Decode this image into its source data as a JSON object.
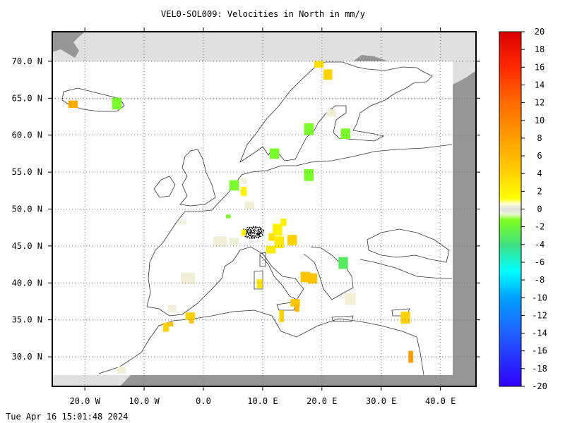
{
  "title": "VEL0-SOL009: Velocities in North in mm/y",
  "footer_timestamp": "Tue Apr 16 15:01:48 2024",
  "map_extent": {
    "lon_min": -25.5,
    "lon_max": 46.0,
    "lat_min": 26.0,
    "lat_max": 74.0
  },
  "lat_axis": {
    "ticks": [
      70,
      65,
      60,
      55,
      50,
      45,
      40,
      35,
      30
    ],
    "labels": [
      "70.0 N",
      "65.0 N",
      "60.0 N",
      "55.0 N",
      "50.0 N",
      "45.0 N",
      "40.0 N",
      "35.0 N",
      "30.0 N"
    ]
  },
  "lon_axis": {
    "ticks": [
      -20,
      -10,
      0,
      10,
      20,
      30,
      40
    ],
    "labels": [
      "20.0 W",
      "10.0 W",
      "0.0",
      "10.0 E",
      "20.0 E",
      "30.0 E",
      "40.0 E"
    ]
  },
  "colorbar": {
    "min": -20,
    "max": 20,
    "tick_values": [
      20,
      18,
      16,
      14,
      12,
      10,
      8,
      6,
      4,
      2,
      0,
      -2,
      -4,
      -6,
      -8,
      -10,
      -12,
      -14,
      -16,
      -18,
      -20
    ],
    "tick_labels": [
      "20",
      "18",
      "16",
      "14",
      "12",
      "10",
      "8",
      "6",
      "4",
      "2",
      "0",
      "-2",
      "-4",
      "-6",
      "-8",
      "-10",
      "-12",
      "-14",
      "-16",
      "-18",
      "-20"
    ],
    "stops": [
      {
        "v": 20,
        "c": "#d90000"
      },
      {
        "v": 16,
        "c": "#ff2a00"
      },
      {
        "v": 12,
        "c": "#ff6a00"
      },
      {
        "v": 8,
        "c": "#ff9e00"
      },
      {
        "v": 4,
        "c": "#ffd200"
      },
      {
        "v": 1.2,
        "c": "#ffff00"
      },
      {
        "v": 0.6,
        "c": "#ffffd0"
      },
      {
        "v": 0,
        "c": "#e0e0e0"
      },
      {
        "v": -0.6,
        "c": "#e8f8d0"
      },
      {
        "v": -1.2,
        "c": "#80ff20"
      },
      {
        "v": -4,
        "c": "#40e080"
      },
      {
        "v": -7,
        "c": "#00ffff"
      },
      {
        "v": -10,
        "c": "#00a0ff"
      },
      {
        "v": -14,
        "c": "#2060ff"
      },
      {
        "v": -20,
        "c": "#3000ff"
      }
    ]
  },
  "chart_data": {
    "type": "heatmap",
    "title": "VEL0-SOL009: Velocities in North in mm/y",
    "value_unit": "mm/y",
    "xrange": [
      -25.5,
      46.0
    ],
    "yrange": [
      26.0,
      74.0
    ],
    "cells": [
      {
        "lon": -22.0,
        "lat": 64.2,
        "w": 1.6,
        "h": 1.0,
        "v": 7
      },
      {
        "lon": -14.6,
        "lat": 64.3,
        "w": 1.6,
        "h": 1.6,
        "v": -1.5
      },
      {
        "lon": 19.5,
        "lat": 69.6,
        "w": 1.6,
        "h": 0.9,
        "v": 3
      },
      {
        "lon": 21.0,
        "lat": 68.2,
        "w": 1.5,
        "h": 1.4,
        "v": 4
      },
      {
        "lon": 21.6,
        "lat": 63.0,
        "w": 1.6,
        "h": 1.0,
        "v": 0.3
      },
      {
        "lon": 17.8,
        "lat": 60.8,
        "w": 1.6,
        "h": 1.6,
        "v": -1.5
      },
      {
        "lon": 24.0,
        "lat": 60.2,
        "w": 1.6,
        "h": 1.4,
        "v": -1.5
      },
      {
        "lon": 12.0,
        "lat": 57.5,
        "w": 1.6,
        "h": 1.4,
        "v": -1.5
      },
      {
        "lon": 17.8,
        "lat": 54.6,
        "w": 1.6,
        "h": 1.6,
        "v": -1.5
      },
      {
        "lon": 5.2,
        "lat": 53.2,
        "w": 1.6,
        "h": 1.4,
        "v": -1.5
      },
      {
        "lon": 6.8,
        "lat": 52.4,
        "w": 1.0,
        "h": 1.2,
        "v": 2
      },
      {
        "lon": 6.8,
        "lat": 53.8,
        "w": 1.0,
        "h": 0.8,
        "v": 0.3
      },
      {
        "lon": 7.8,
        "lat": 50.5,
        "w": 1.6,
        "h": 1.0,
        "v": 0.3
      },
      {
        "lon": 4.2,
        "lat": 49.0,
        "w": 0.8,
        "h": 0.5,
        "v": -1.5
      },
      {
        "lon": -3.5,
        "lat": 48.2,
        "w": 1.2,
        "h": 0.6,
        "v": 0.3
      },
      {
        "lon": 12.5,
        "lat": 47.2,
        "w": 1.6,
        "h": 1.6,
        "v": 2
      },
      {
        "lon": 13.5,
        "lat": 48.2,
        "w": 1.0,
        "h": 1.0,
        "v": 2
      },
      {
        "lon": 11.5,
        "lat": 46.2,
        "w": 1.0,
        "h": 1.0,
        "v": 3
      },
      {
        "lon": 12.8,
        "lat": 45.5,
        "w": 1.6,
        "h": 1.6,
        "v": 2.5
      },
      {
        "lon": 11.4,
        "lat": 44.5,
        "w": 1.6,
        "h": 1.0,
        "v": 2.5
      },
      {
        "lon": 15.0,
        "lat": 45.8,
        "w": 1.6,
        "h": 1.4,
        "v": 4
      },
      {
        "lon": 6.8,
        "lat": 46.8,
        "w": 0.8,
        "h": 0.8,
        "v": 2
      },
      {
        "lon": 2.8,
        "lat": 45.6,
        "w": 2.2,
        "h": 1.4,
        "v": 0.3
      },
      {
        "lon": 5.2,
        "lat": 45.6,
        "w": 1.6,
        "h": 1.0,
        "v": 0.3
      },
      {
        "lon": -2.6,
        "lat": 40.6,
        "w": 2.4,
        "h": 1.6,
        "v": 0.3
      },
      {
        "lon": 9.5,
        "lat": 39.9,
        "w": 1.0,
        "h": 1.2,
        "v": 3
      },
      {
        "lon": 17.2,
        "lat": 40.8,
        "w": 1.6,
        "h": 1.4,
        "v": 5
      },
      {
        "lon": 18.4,
        "lat": 40.6,
        "w": 1.6,
        "h": 1.4,
        "v": 5
      },
      {
        "lon": 23.6,
        "lat": 42.7,
        "w": 1.6,
        "h": 1.6,
        "v": -3
      },
      {
        "lon": 24.8,
        "lat": 37.8,
        "w": 1.8,
        "h": 1.6,
        "v": 0.3
      },
      {
        "lon": 15.5,
        "lat": 37.3,
        "w": 1.6,
        "h": 1.0,
        "v": 5
      },
      {
        "lon": 15.8,
        "lat": 36.6,
        "w": 0.8,
        "h": 1.0,
        "v": 6
      },
      {
        "lon": 13.2,
        "lat": 35.5,
        "w": 0.8,
        "h": 1.6,
        "v": 4
      },
      {
        "lon": -2.2,
        "lat": 35.5,
        "w": 1.6,
        "h": 1.0,
        "v": 4
      },
      {
        "lon": -2.0,
        "lat": 34.9,
        "w": 0.8,
        "h": 0.8,
        "v": 5
      },
      {
        "lon": -6.3,
        "lat": 34.0,
        "w": 1.0,
        "h": 1.2,
        "v": 4
      },
      {
        "lon": -5.6,
        "lat": 34.4,
        "w": 1.0,
        "h": 0.6,
        "v": 5
      },
      {
        "lon": -5.3,
        "lat": 36.5,
        "w": 1.4,
        "h": 1.0,
        "v": 0.3
      },
      {
        "lon": 34.1,
        "lat": 35.3,
        "w": 1.6,
        "h": 1.6,
        "v": 4
      },
      {
        "lon": 35.0,
        "lat": 30.0,
        "w": 0.8,
        "h": 1.6,
        "v": 8
      },
      {
        "lon": -13.8,
        "lat": 28.2,
        "w": 1.4,
        "h": 1.0,
        "v": 0.3
      }
    ]
  }
}
